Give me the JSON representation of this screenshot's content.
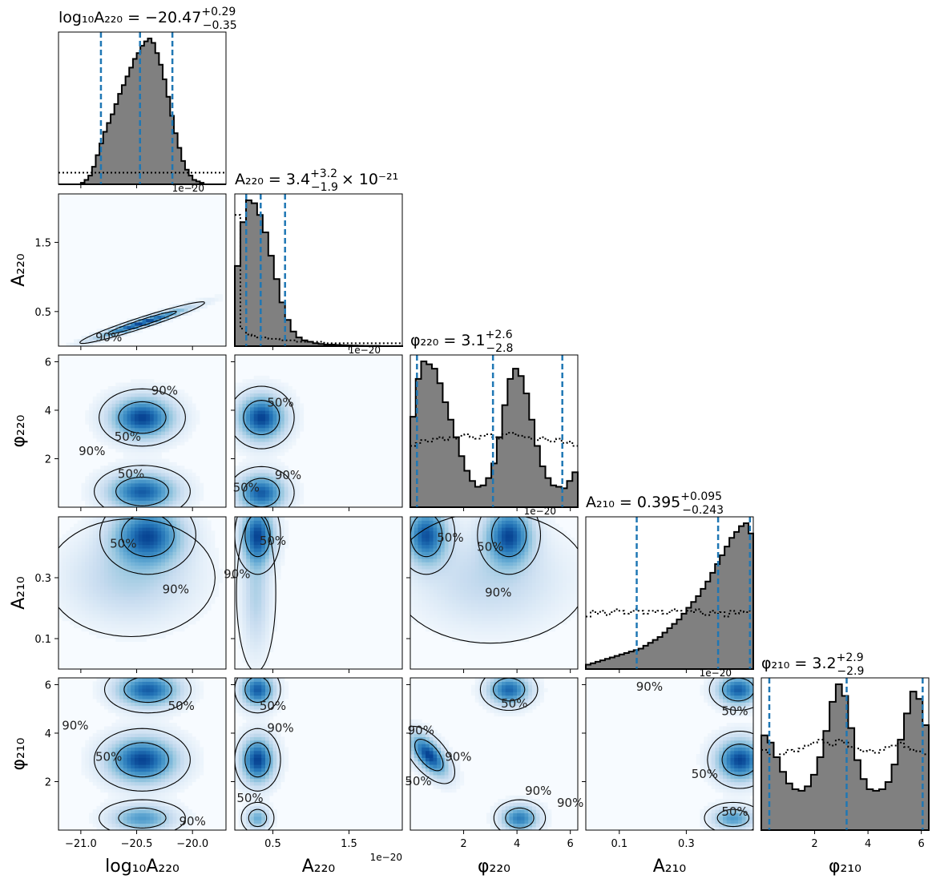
{
  "chart_data": {
    "type": "corner",
    "parameters": [
      {
        "id": "logA220",
        "label": "log₁₀A₂₂₀",
        "range": [
          -21.2,
          -19.7
        ],
        "ticks": [
          -21.0,
          -20.5,
          -20.0
        ],
        "tick_labels": [
          "−21.0",
          "−20.5",
          "−20.0"
        ],
        "title": "log₁₀A₂₂₀ = −20.47",
        "title_up": "+0.29",
        "title_down": "−0.35",
        "offset_text": "1e−20",
        "quantiles": [
          -20.82,
          -20.47,
          -20.18
        ],
        "hist": [
          0,
          0,
          0,
          0,
          0,
          0,
          0.01,
          0.03,
          0.06,
          0.12,
          0.2,
          0.28,
          0.36,
          0.42,
          0.48,
          0.55,
          0.62,
          0.68,
          0.74,
          0.8,
          0.86,
          0.9,
          0.95,
          0.98,
          1.0,
          0.97,
          0.9,
          0.82,
          0.72,
          0.6,
          0.47,
          0.35,
          0.25,
          0.16,
          0.1,
          0.06,
          0.03,
          0.02,
          0.01,
          0,
          0,
          0,
          0,
          0,
          0
        ],
        "prior": [
          0.08,
          0.08,
          0.08,
          0.08,
          0.08,
          0.08,
          0.08,
          0.08,
          0.08,
          0.08,
          0.08,
          0.08,
          0.08,
          0.08,
          0.08,
          0.08,
          0.08,
          0.08,
          0.08,
          0.08,
          0.08,
          0.08,
          0.08,
          0.08,
          0.08,
          0.08,
          0.08,
          0.08,
          0.08,
          0.08,
          0.08,
          0.08,
          0.08,
          0.08,
          0.08,
          0.08,
          0.08,
          0.08,
          0.08,
          0.08,
          0.08,
          0.08,
          0.08,
          0.08,
          0.08
        ]
      },
      {
        "id": "A220",
        "label": "A₂₂₀",
        "range": [
          0.0,
          2.2
        ],
        "ticks": [
          0.5,
          1.5
        ],
        "tick_labels": [
          "0.5",
          "1.5"
        ],
        "title": "A₂₂₀ = 3.4",
        "title_up": "+3.2",
        "title_down": "−1.9",
        "title_suffix": "× 10⁻²¹",
        "offset_text": "1e−20",
        "quantiles": [
          0.15,
          0.34,
          0.66
        ],
        "hist": [
          0.55,
          0.85,
          1.0,
          0.98,
          0.9,
          0.78,
          0.62,
          0.46,
          0.3,
          0.18,
          0.1,
          0.06,
          0.04,
          0.03,
          0.02,
          0.015,
          0.01,
          0.01,
          0.008,
          0.006,
          0.005,
          0.004,
          0.003,
          0.002,
          0.002,
          0.002,
          0.001,
          0.001,
          0.001,
          0.001
        ],
        "prior": [
          0.9,
          0.12,
          0.08,
          0.07,
          0.06,
          0.06,
          0.05,
          0.05,
          0.04,
          0.04,
          0.04,
          0.03,
          0.03,
          0.03,
          0.03,
          0.03,
          0.02,
          0.02,
          0.02,
          0.02,
          0.02,
          0.02,
          0.02,
          0.02,
          0.02,
          0.02,
          0.02,
          0.02,
          0.02,
          0.02
        ]
      },
      {
        "id": "phi220",
        "label": "φ₂₂₀",
        "range": [
          0.0,
          6.28
        ],
        "ticks": [
          2,
          4,
          6
        ],
        "tick_labels": [
          "2",
          "4",
          "6"
        ],
        "title": "φ₂₂₀ = 3.1",
        "title_up": "+2.6",
        "title_down": "−2.8",
        "offset_text": "1e−20",
        "quantiles": [
          0.25,
          3.1,
          5.7
        ],
        "hist": [
          0.62,
          0.88,
          1.0,
          0.98,
          0.95,
          0.85,
          0.72,
          0.6,
          0.48,
          0.35,
          0.25,
          0.18,
          0.14,
          0.15,
          0.2,
          0.3,
          0.48,
          0.7,
          0.88,
          0.95,
          0.9,
          0.78,
          0.6,
          0.42,
          0.28,
          0.2,
          0.15,
          0.14,
          0.13,
          0.18,
          0.24
        ],
        "prior": [
          0.42,
          0.44,
          0.46,
          0.45,
          0.47,
          0.48,
          0.46,
          0.48,
          0.47,
          0.49,
          0.5,
          0.48,
          0.47,
          0.49,
          0.5,
          0.48,
          0.47,
          0.5,
          0.51,
          0.5,
          0.49,
          0.48,
          0.47,
          0.46,
          0.48,
          0.46,
          0.45,
          0.47,
          0.44,
          0.45,
          0.42
        ]
      },
      {
        "id": "A210",
        "label": "A₂₁₀",
        "range": [
          0.0,
          0.5
        ],
        "ticks": [
          0.1,
          0.3
        ],
        "tick_labels": [
          "0.1",
          "0.3"
        ],
        "title": "A₂₁₀ = 0.395",
        "title_up": "+0.095",
        "title_down": "−0.243",
        "offset_text": "1e−20",
        "quantiles": [
          0.152,
          0.395,
          0.49
        ],
        "hist": [
          0.03,
          0.04,
          0.05,
          0.06,
          0.07,
          0.08,
          0.09,
          0.1,
          0.11,
          0.12,
          0.13,
          0.14,
          0.16,
          0.18,
          0.2,
          0.22,
          0.25,
          0.28,
          0.31,
          0.34,
          0.38,
          0.42,
          0.46,
          0.5,
          0.55,
          0.6,
          0.66,
          0.72,
          0.78,
          0.84,
          0.9,
          0.94,
          0.98,
          1.0,
          0.93
        ],
        "prior": [
          0.36,
          0.4,
          0.38,
          0.4,
          0.37,
          0.39,
          0.41,
          0.4,
          0.38,
          0.39,
          0.41,
          0.4,
          0.38,
          0.4,
          0.39,
          0.4,
          0.38,
          0.39,
          0.41,
          0.4,
          0.38,
          0.4,
          0.39,
          0.41,
          0.38,
          0.37,
          0.4,
          0.38,
          0.39,
          0.36,
          0.4,
          0.38,
          0.4,
          0.39,
          0.4
        ]
      },
      {
        "id": "phi210",
        "label": "φ₂₁₀",
        "range": [
          0.0,
          6.28
        ],
        "ticks": [
          2,
          4,
          6
        ],
        "tick_labels": [
          "2",
          "4",
          "6"
        ],
        "title": "φ₂₁₀ = 3.2",
        "title_up": "+2.9",
        "title_down": "−2.9",
        "quantiles": [
          0.3,
          3.2,
          6.05
        ],
        "hist": [
          0.65,
          0.6,
          0.5,
          0.4,
          0.32,
          0.28,
          0.27,
          0.3,
          0.38,
          0.5,
          0.68,
          0.88,
          1.0,
          0.92,
          0.7,
          0.48,
          0.35,
          0.28,
          0.27,
          0.28,
          0.33,
          0.45,
          0.62,
          0.8,
          0.95,
          0.9,
          0.72
        ],
        "prior": [
          0.55,
          0.52,
          0.5,
          0.52,
          0.55,
          0.54,
          0.56,
          0.58,
          0.6,
          0.62,
          0.6,
          0.58,
          0.62,
          0.6,
          0.57,
          0.56,
          0.54,
          0.55,
          0.53,
          0.55,
          0.57,
          0.58,
          0.6,
          0.57,
          0.55,
          0.54,
          0.52
        ]
      }
    ],
    "contour_levels": [
      "50%",
      "90%"
    ],
    "pairs": [
      {
        "x": 0,
        "y": 1,
        "modes": [
          {
            "cx": -20.45,
            "cy": 0.34,
            "sx": 0.26,
            "sy": 0.14,
            "rho": 0.96,
            "w": 1.0
          }
        ],
        "contours": [
          {
            "label": "90%",
            "at": [
              -20.75,
              0.12
            ]
          }
        ]
      },
      {
        "x": 0,
        "y": 2,
        "modes": [
          {
            "cx": -20.45,
            "cy": 3.7,
            "sx": 0.18,
            "sy": 0.55,
            "rho": 0,
            "w": 1.0
          },
          {
            "cx": -20.45,
            "cy": 0.65,
            "sx": 0.2,
            "sy": 0.5,
            "rho": 0,
            "w": 0.9
          }
        ],
        "contours": [
          {
            "label": "50%",
            "at": [
              -20.58,
              2.9
            ]
          },
          {
            "label": "50%",
            "at": [
              -20.55,
              1.35
            ]
          },
          {
            "label": "90%",
            "at": [
              -20.9,
              2.3
            ]
          },
          {
            "label": "90%",
            "at": [
              -20.25,
              4.8
            ]
          }
        ]
      },
      {
        "x": 1,
        "y": 2,
        "modes": [
          {
            "cx": 0.35,
            "cy": 3.7,
            "sx": 0.2,
            "sy": 0.6,
            "rho": 0,
            "w": 1.0
          },
          {
            "cx": 0.35,
            "cy": 0.6,
            "sx": 0.2,
            "sy": 0.5,
            "rho": 0,
            "w": 0.9
          }
        ],
        "contours": [
          {
            "label": "50%",
            "at": [
              0.6,
              4.3
            ]
          },
          {
            "label": "50%",
            "at": [
              0.15,
              0.8
            ]
          },
          {
            "label": "90%",
            "at": [
              0.7,
              1.3
            ]
          }
        ]
      },
      {
        "x": 0,
        "y": 3,
        "modes": [
          {
            "cx": -20.4,
            "cy": 0.44,
            "sx": 0.2,
            "sy": 0.06,
            "rho": 0,
            "w": 1.0
          },
          {
            "cx": -20.55,
            "cy": 0.3,
            "sx": 0.35,
            "sy": 0.09,
            "rho": 0,
            "w": 0.3
          }
        ],
        "contours": [
          {
            "label": "50%",
            "at": [
              -20.62,
              0.41
            ]
          },
          {
            "label": "90%",
            "at": [
              -20.15,
              0.26
            ]
          }
        ]
      },
      {
        "x": 1,
        "y": 3,
        "modes": [
          {
            "cx": 0.3,
            "cy": 0.44,
            "sx": 0.14,
            "sy": 0.06,
            "rho": 0,
            "w": 1.0
          },
          {
            "cx": 0.28,
            "cy": 0.25,
            "sx": 0.12,
            "sy": 0.12,
            "rho": 0,
            "w": 0.3
          }
        ],
        "contours": [
          {
            "label": "50%",
            "at": [
              0.5,
              0.42
            ]
          },
          {
            "label": "90%",
            "at": [
              0.03,
              0.31
            ]
          }
        ]
      },
      {
        "x": 2,
        "y": 3,
        "modes": [
          {
            "cx": 0.6,
            "cy": 0.44,
            "sx": 0.5,
            "sy": 0.06,
            "rho": 0,
            "w": 1.0
          },
          {
            "cx": 3.7,
            "cy": 0.44,
            "sx": 0.55,
            "sy": 0.06,
            "rho": 0,
            "w": 1.0
          },
          {
            "cx": 3.0,
            "cy": 0.3,
            "sx": 1.7,
            "sy": 0.1,
            "rho": 0,
            "w": 0.25
          }
        ],
        "contours": [
          {
            "label": "50%",
            "at": [
              1.5,
              0.43
            ]
          },
          {
            "label": "50%",
            "at": [
              3.0,
              0.4
            ]
          },
          {
            "label": "90%",
            "at": [
              3.3,
              0.25
            ]
          }
        ]
      },
      {
        "x": 0,
        "y": 4,
        "modes": [
          {
            "cx": -20.4,
            "cy": 5.8,
            "sx": 0.18,
            "sy": 0.45,
            "rho": 0,
            "w": 0.9
          },
          {
            "cx": -20.45,
            "cy": 2.9,
            "sx": 0.2,
            "sy": 0.6,
            "rho": 0,
            "w": 1.0
          },
          {
            "cx": -20.45,
            "cy": 0.5,
            "sx": 0.18,
            "sy": 0.35,
            "rho": 0,
            "w": 0.6
          }
        ],
        "contours": [
          {
            "label": "50%",
            "at": [
              -20.1,
              5.1
            ]
          },
          {
            "label": "50%",
            "at": [
              -20.75,
              3.0
            ]
          },
          {
            "label": "90%",
            "at": [
              -21.05,
              4.3
            ]
          },
          {
            "label": "90%",
            "at": [
              -20.0,
              0.35
            ]
          }
        ]
      },
      {
        "x": 1,
        "y": 4,
        "modes": [
          {
            "cx": 0.3,
            "cy": 5.8,
            "sx": 0.14,
            "sy": 0.45,
            "rho": 0,
            "w": 0.9
          },
          {
            "cx": 0.3,
            "cy": 2.9,
            "sx": 0.14,
            "sy": 0.6,
            "rho": 0,
            "w": 1.0
          },
          {
            "cx": 0.3,
            "cy": 0.5,
            "sx": 0.1,
            "sy": 0.3,
            "rho": 0,
            "w": 0.5
          }
        ],
        "contours": [
          {
            "label": "50%",
            "at": [
              0.5,
              5.1
            ]
          },
          {
            "label": "50%",
            "at": [
              0.2,
              1.3
            ]
          },
          {
            "label": "90%",
            "at": [
              0.6,
              4.2
            ]
          }
        ]
      },
      {
        "x": 2,
        "y": 4,
        "modes": [
          {
            "cx": 0.7,
            "cy": 3.1,
            "sx": 0.45,
            "sy": 0.55,
            "rho": -0.6,
            "w": 1.0
          },
          {
            "cx": 3.7,
            "cy": 5.8,
            "sx": 0.5,
            "sy": 0.4,
            "rho": 0,
            "w": 0.85
          },
          {
            "cx": 4.1,
            "cy": 0.5,
            "sx": 0.45,
            "sy": 0.35,
            "rho": 0,
            "w": 0.75
          }
        ],
        "contours": [
          {
            "label": "50%",
            "at": [
              0.3,
              2.0
            ]
          },
          {
            "label": "50%",
            "at": [
              3.9,
              5.2
            ]
          },
          {
            "label": "90%",
            "at": [
              0.4,
              4.1
            ]
          },
          {
            "label": "90%",
            "at": [
              1.8,
              3.0
            ]
          },
          {
            "label": "90%",
            "at": [
              4.8,
              1.6
            ]
          },
          {
            "label": "90%",
            "at": [
              6.0,
              1.1
            ]
          }
        ]
      },
      {
        "x": 3,
        "y": 4,
        "modes": [
          {
            "cx": 0.455,
            "cy": 5.8,
            "sx": 0.04,
            "sy": 0.4,
            "rho": 0,
            "w": 0.9
          },
          {
            "cx": 0.46,
            "cy": 2.9,
            "sx": 0.045,
            "sy": 0.55,
            "rho": 0,
            "w": 1.0
          },
          {
            "cx": 0.44,
            "cy": 0.5,
            "sx": 0.04,
            "sy": 0.3,
            "rho": 0,
            "w": 0.6
          }
        ],
        "contours": [
          {
            "label": "50%",
            "at": [
              0.445,
              4.9
            ]
          },
          {
            "label": "50%",
            "at": [
              0.355,
              2.3
            ]
          },
          {
            "label": "50%",
            "at": [
              0.445,
              0.75
            ]
          },
          {
            "label": "90%",
            "at": [
              0.19,
              5.9
            ]
          }
        ]
      }
    ]
  }
}
